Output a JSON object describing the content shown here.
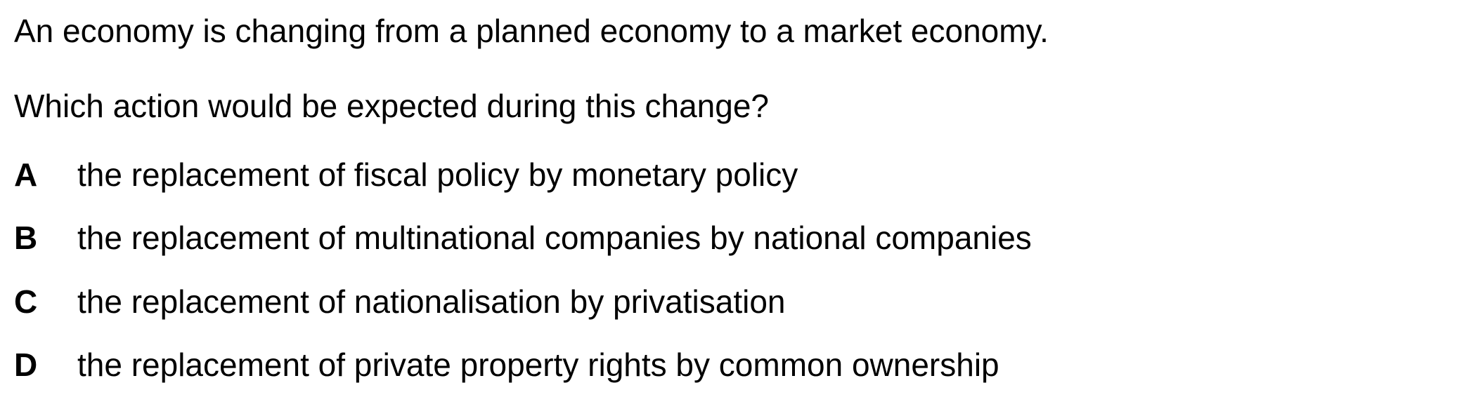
{
  "question": {
    "stem_line_1": "An economy is changing from a planned economy to a market economy.",
    "stem_line_2": "Which action would be expected during this change?"
  },
  "options": [
    {
      "letter": "A",
      "text": "the replacement of fiscal policy by monetary policy"
    },
    {
      "letter": "B",
      "text": "the replacement of multinational companies by national companies"
    },
    {
      "letter": "C",
      "text": "the replacement of nationalisation by privatisation"
    },
    {
      "letter": "D",
      "text": "the replacement of private property rights by common ownership"
    }
  ]
}
